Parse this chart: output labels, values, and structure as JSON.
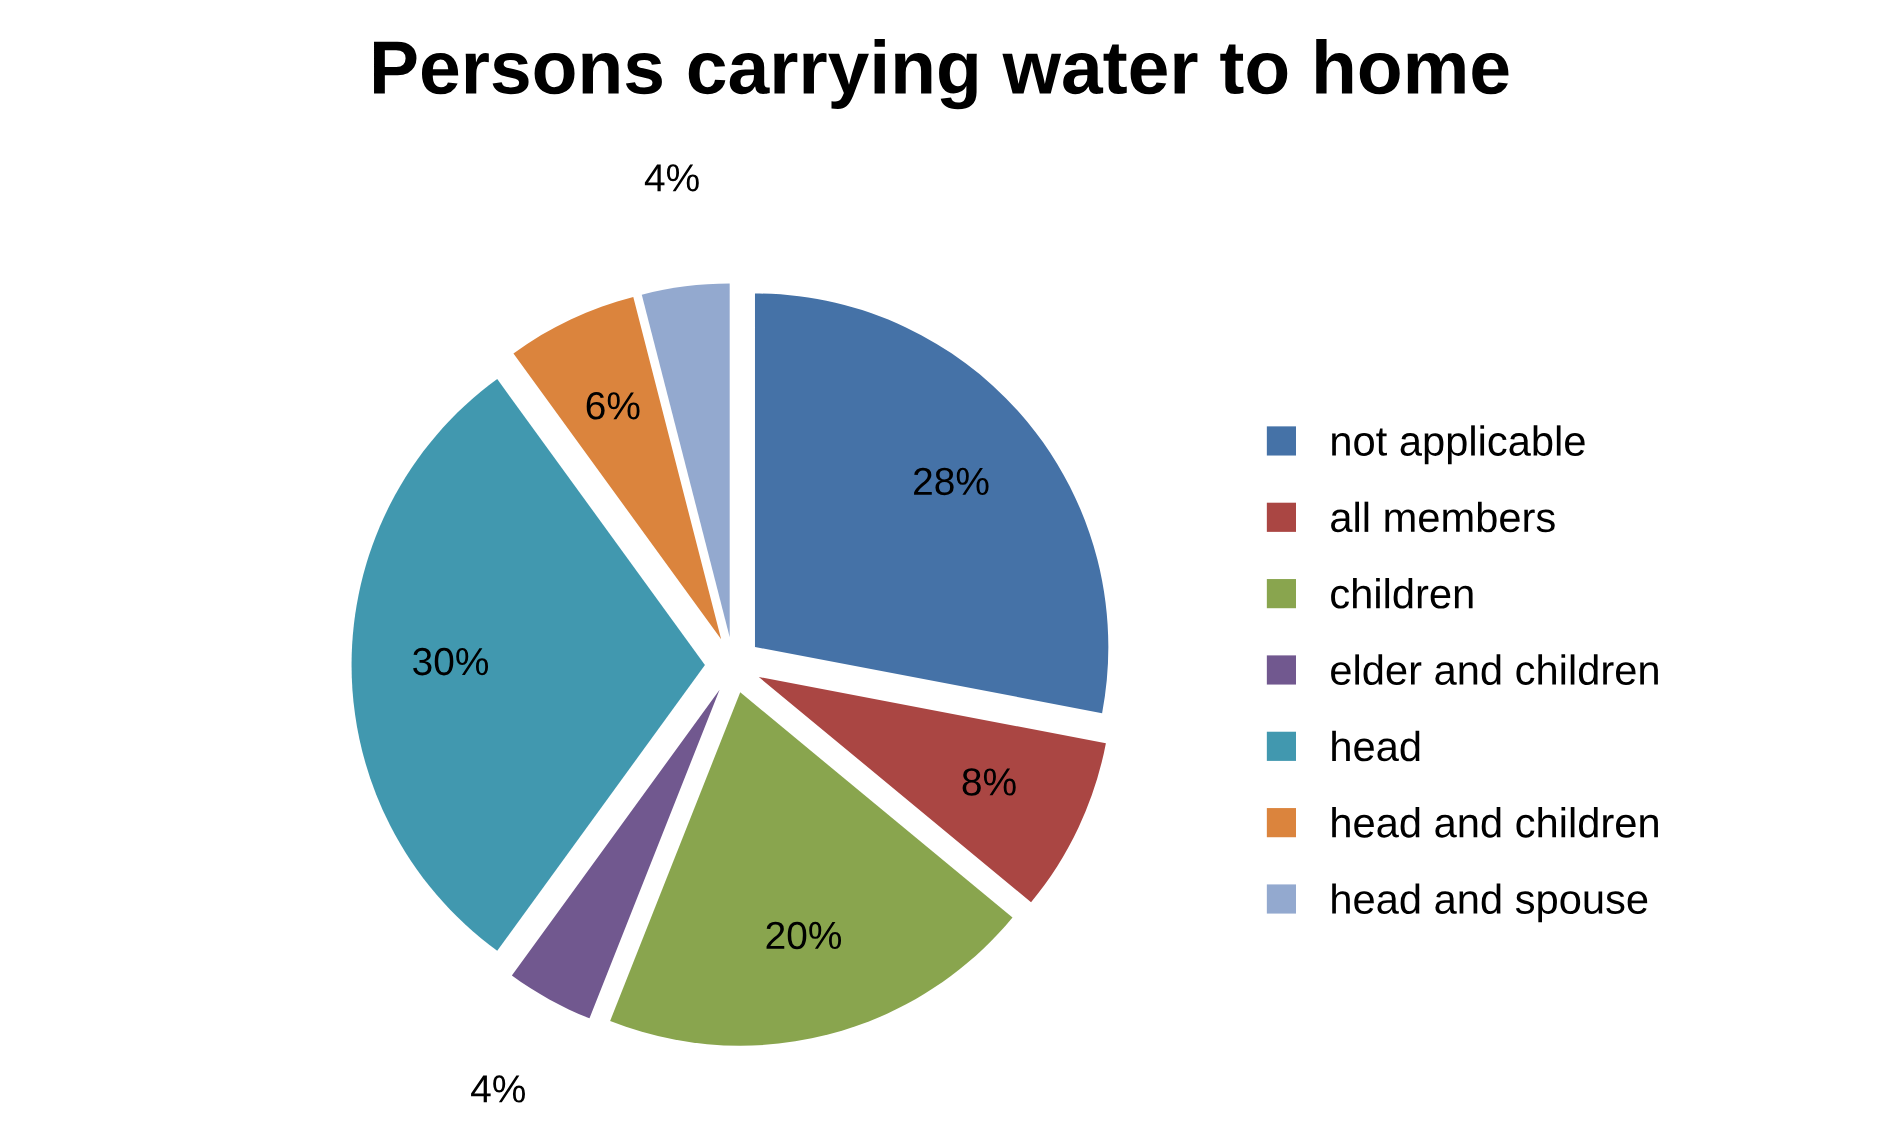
{
  "chart_data": {
    "type": "pie",
    "title": "Persons carrying water to home",
    "categories": [
      "not applicable",
      "all members",
      "children",
      "elder and children",
      "head",
      "head and children",
      "head and spouse"
    ],
    "values": [
      28,
      8,
      20,
      4,
      30,
      6,
      4
    ],
    "colors": [
      "#4572a7",
      "#aa4643",
      "#89a54e",
      "#71588f",
      "#4198af",
      "#db843d",
      "#93a9cf"
    ],
    "value_labels": [
      "28%",
      "8%",
      "20%",
      "4%",
      "30%",
      "6%",
      "4%"
    ],
    "legend": "right"
  }
}
